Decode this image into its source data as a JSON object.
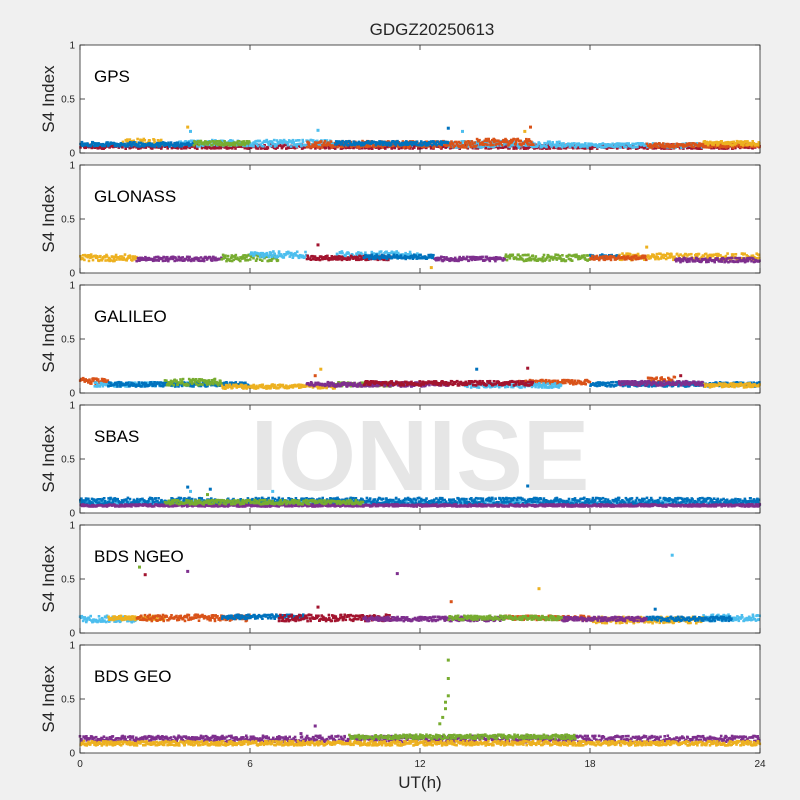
{
  "chart_data": {
    "type": "scatter",
    "title": "GDGZ20250613",
    "xlabel": "UT(h)",
    "ylabel": "S4 Index",
    "xlim": [
      0,
      24
    ],
    "ylim": [
      0,
      1
    ],
    "xticks": [
      "0",
      "6",
      "12",
      "18",
      "24"
    ],
    "yticks": [
      "0",
      "0.5",
      "1"
    ],
    "watermark": "IONISE",
    "grid": false,
    "colors": {
      "blue": "#0072BD",
      "orange": "#D95319",
      "yellow": "#EDB120",
      "purple": "#7E2F8E",
      "green": "#77AC30",
      "cyan": "#4DBEEE",
      "red": "#A2142F"
    },
    "panels": [
      {
        "system": "GPS",
        "bands": [
          {
            "color": "red",
            "segments": [
              [
                0,
                24,
                0.06,
                0.02
              ]
            ]
          },
          {
            "color": "cyan",
            "segments": [
              [
                3.5,
                9,
                0.09,
                0.03
              ],
              [
                13,
                17,
                0.08,
                0.03
              ],
              [
                17,
                22,
                0.07,
                0.02
              ]
            ]
          },
          {
            "color": "orange",
            "segments": [
              [
                8,
                14,
                0.08,
                0.03
              ],
              [
                14,
                16,
                0.1,
                0.03
              ],
              [
                20,
                24,
                0.07,
                0.02
              ]
            ]
          },
          {
            "color": "yellow",
            "segments": [
              [
                1.5,
                3,
                0.1,
                0.03
              ],
              [
                22,
                24,
                0.09,
                0.02
              ]
            ]
          },
          {
            "color": "blue",
            "segments": [
              [
                0,
                4,
                0.08,
                0.02
              ],
              [
                9,
                13,
                0.09,
                0.02
              ]
            ]
          },
          {
            "color": "green",
            "segments": [
              [
                4,
                6,
                0.09,
                0.02
              ]
            ]
          }
        ],
        "spikes": [
          {
            "x": 3.8,
            "y": 0.24,
            "color": "yellow"
          },
          {
            "x": 3.9,
            "y": 0.2,
            "color": "cyan"
          },
          {
            "x": 8.4,
            "y": 0.21,
            "color": "cyan"
          },
          {
            "x": 13.0,
            "y": 0.23,
            "color": "blue"
          },
          {
            "x": 13.5,
            "y": 0.2,
            "color": "cyan"
          },
          {
            "x": 15.9,
            "y": 0.24,
            "color": "orange"
          },
          {
            "x": 15.7,
            "y": 0.2,
            "color": "yellow"
          }
        ]
      },
      {
        "system": "GLONASS",
        "bands": [
          {
            "color": "yellow",
            "segments": [
              [
                0,
                2,
                0.14,
                0.03
              ],
              [
                19,
                24,
                0.15,
                0.03
              ]
            ]
          },
          {
            "color": "purple",
            "segments": [
              [
                2,
                5,
                0.13,
                0.02
              ],
              [
                12.5,
                15,
                0.13,
                0.02
              ],
              [
                21,
                24,
                0.12,
                0.02
              ]
            ]
          },
          {
            "color": "green",
            "segments": [
              [
                5,
                7,
                0.14,
                0.03
              ],
              [
                15,
                18,
                0.14,
                0.03
              ]
            ]
          },
          {
            "color": "cyan",
            "segments": [
              [
                6,
                8,
                0.17,
                0.03
              ],
              [
                9,
                12,
                0.17,
                0.03
              ]
            ]
          },
          {
            "color": "red",
            "segments": [
              [
                8,
                11,
                0.14,
                0.02
              ]
            ]
          },
          {
            "color": "blue",
            "segments": [
              [
                10,
                12.5,
                0.15,
                0.02
              ],
              [
                18,
                19,
                0.15,
                0.02
              ]
            ]
          },
          {
            "color": "orange",
            "segments": [
              [
                18,
                20,
                0.14,
                0.02
              ]
            ]
          }
        ],
        "spikes": [
          {
            "x": 8.4,
            "y": 0.26,
            "color": "red"
          },
          {
            "x": 12.4,
            "y": 0.05,
            "color": "yellow"
          },
          {
            "x": 20,
            "y": 0.24,
            "color": "yellow"
          }
        ]
      },
      {
        "system": "GALILEO",
        "bands": [
          {
            "color": "orange",
            "segments": [
              [
                0,
                1,
                0.11,
                0.03
              ],
              [
                15.5,
                18,
                0.1,
                0.02
              ],
              [
                20,
                21,
                0.12,
                0.03
              ]
            ]
          },
          {
            "color": "cyan",
            "segments": [
              [
                0.5,
                4,
                0.08,
                0.02
              ],
              [
                13.5,
                17,
                0.07,
                0.02
              ]
            ]
          },
          {
            "color": "blue",
            "segments": [
              [
                1,
                6,
                0.08,
                0.02
              ],
              [
                18,
                24,
                0.08,
                0.02
              ]
            ]
          },
          {
            "color": "green",
            "segments": [
              [
                3,
                5,
                0.1,
                0.03
              ],
              [
                9,
                11,
                0.08,
                0.02
              ]
            ]
          },
          {
            "color": "yellow",
            "segments": [
              [
                5,
                9,
                0.06,
                0.02
              ],
              [
                22,
                24,
                0.07,
                0.02
              ]
            ]
          },
          {
            "color": "purple",
            "segments": [
              [
                8,
                13,
                0.08,
                0.02
              ],
              [
                19,
                22,
                0.09,
                0.02
              ]
            ]
          },
          {
            "color": "red",
            "segments": [
              [
                10,
                16,
                0.09,
                0.02
              ]
            ]
          }
        ],
        "spikes": [
          {
            "x": 8.5,
            "y": 0.22,
            "color": "yellow"
          },
          {
            "x": 8.3,
            "y": 0.16,
            "color": "orange"
          },
          {
            "x": 14,
            "y": 0.22,
            "color": "blue"
          },
          {
            "x": 15.8,
            "y": 0.23,
            "color": "red"
          },
          {
            "x": 21.2,
            "y": 0.16,
            "color": "red"
          }
        ]
      },
      {
        "system": "SBAS",
        "bands": [
          {
            "color": "cyan",
            "segments": [
              [
                0,
                24,
                0.09,
                0.02
              ]
            ]
          },
          {
            "color": "blue",
            "segments": [
              [
                0,
                24,
                0.11,
                0.03
              ]
            ]
          },
          {
            "color": "purple",
            "segments": [
              [
                0,
                24,
                0.07,
                0.01
              ]
            ]
          },
          {
            "color": "green",
            "segments": [
              [
                3,
                10,
                0.1,
                0.02
              ]
            ]
          }
        ],
        "spikes": [
          {
            "x": 3.8,
            "y": 0.24,
            "color": "blue"
          },
          {
            "x": 3.9,
            "y": 0.2,
            "color": "cyan"
          },
          {
            "x": 4.6,
            "y": 0.22,
            "color": "blue"
          },
          {
            "x": 4.5,
            "y": 0.17,
            "color": "green"
          },
          {
            "x": 6.8,
            "y": 0.2,
            "color": "cyan"
          },
          {
            "x": 15.8,
            "y": 0.25,
            "color": "blue"
          }
        ]
      },
      {
        "system": "BDS NGEO",
        "bands": [
          {
            "color": "cyan",
            "segments": [
              [
                0,
                2,
                0.13,
                0.03
              ],
              [
                22,
                24,
                0.14,
                0.03
              ]
            ]
          },
          {
            "color": "yellow",
            "segments": [
              [
                1,
                3,
                0.14,
                0.02
              ],
              [
                18,
                22,
                0.12,
                0.03
              ]
            ]
          },
          {
            "color": "orange",
            "segments": [
              [
                2,
                6,
                0.14,
                0.03
              ],
              [
                15,
                18,
                0.14,
                0.02
              ]
            ]
          },
          {
            "color": "blue",
            "segments": [
              [
                5,
                8,
                0.15,
                0.02
              ],
              [
                20,
                23,
                0.13,
                0.02
              ]
            ]
          },
          {
            "color": "red",
            "segments": [
              [
                7,
                11,
                0.14,
                0.03
              ]
            ]
          },
          {
            "color": "purple",
            "segments": [
              [
                10,
                15,
                0.13,
                0.02
              ],
              [
                17,
                20,
                0.13,
                0.02
              ]
            ]
          },
          {
            "color": "green",
            "segments": [
              [
                13,
                17,
                0.14,
                0.02
              ]
            ]
          }
        ],
        "spikes": [
          {
            "x": 2.1,
            "y": 0.61,
            "color": "green"
          },
          {
            "x": 2.3,
            "y": 0.54,
            "color": "red"
          },
          {
            "x": 3.8,
            "y": 0.57,
            "color": "purple"
          },
          {
            "x": 11.2,
            "y": 0.55,
            "color": "purple"
          },
          {
            "x": 13.1,
            "y": 0.29,
            "color": "orange"
          },
          {
            "x": 16.2,
            "y": 0.41,
            "color": "yellow"
          },
          {
            "x": 20.3,
            "y": 0.22,
            "color": "blue"
          },
          {
            "x": 20.9,
            "y": 0.72,
            "color": "cyan"
          },
          {
            "x": 8.4,
            "y": 0.24,
            "color": "red"
          }
        ]
      },
      {
        "system": "BDS GEO",
        "bands": [
          {
            "color": "purple",
            "segments": [
              [
                0,
                24,
                0.13,
                0.03
              ]
            ]
          },
          {
            "color": "yellow",
            "segments": [
              [
                0,
                24,
                0.09,
                0.02
              ]
            ]
          },
          {
            "color": "green",
            "segments": [
              [
                9.5,
                17.5,
                0.15,
                0.02
              ]
            ]
          }
        ],
        "spikes": [
          {
            "x": 13.0,
            "y": 0.86,
            "color": "green"
          },
          {
            "x": 13.0,
            "y": 0.69,
            "color": "green"
          },
          {
            "x": 13.0,
            "y": 0.53,
            "color": "green"
          },
          {
            "x": 12.9,
            "y": 0.47,
            "color": "green"
          },
          {
            "x": 12.9,
            "y": 0.41,
            "color": "green"
          },
          {
            "x": 12.8,
            "y": 0.33,
            "color": "green"
          },
          {
            "x": 12.7,
            "y": 0.27,
            "color": "green"
          },
          {
            "x": 8.3,
            "y": 0.25,
            "color": "purple"
          },
          {
            "x": 7.8,
            "y": 0.18,
            "color": "purple"
          }
        ]
      }
    ]
  }
}
